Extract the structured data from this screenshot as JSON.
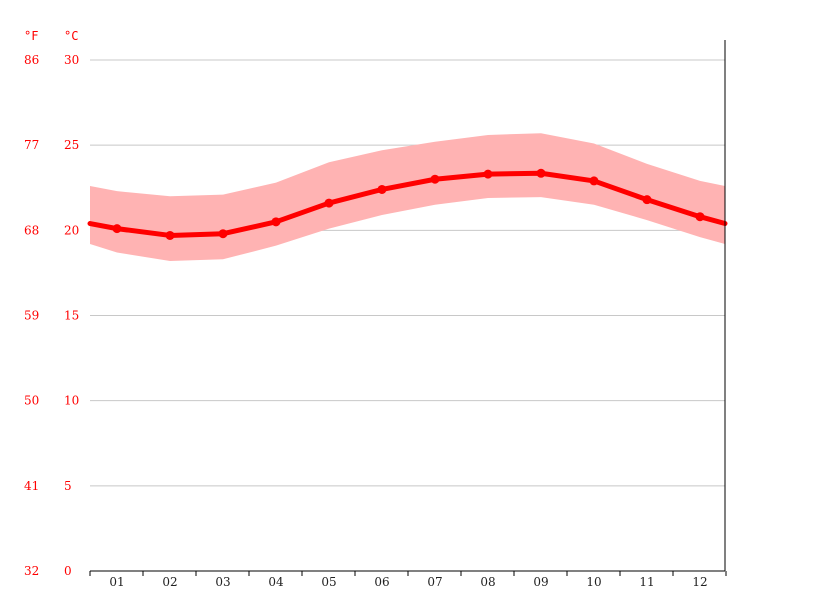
{
  "chart_data": {
    "type": "line",
    "title": "",
    "xlabel": "",
    "ylabel": "",
    "unit_left": "°F",
    "unit_right": "°C",
    "categories": [
      "01",
      "02",
      "03",
      "04",
      "05",
      "06",
      "07",
      "08",
      "09",
      "10",
      "11",
      "12"
    ],
    "ylim": [
      0,
      30
    ],
    "yticks_c": [
      "30",
      "25",
      "20",
      "15",
      "10",
      "5",
      "0"
    ],
    "yticks_f": [
      "86",
      "77",
      "68",
      "59",
      "50",
      "41",
      "32"
    ],
    "ytick_values": [
      30,
      25,
      20,
      15,
      10,
      5,
      0
    ],
    "grid": true,
    "series": [
      {
        "values": [
          20.1,
          19.7,
          19.8,
          20.5,
          21.6,
          22.4,
          23.0,
          23.3,
          23.35,
          22.9,
          21.8,
          20.8
        ]
      }
    ],
    "band": {
      "upper": [
        22.3,
        22.0,
        22.1,
        22.8,
        24.0,
        24.7,
        25.2,
        25.6,
        25.7,
        25.1,
        23.9,
        22.9
      ],
      "lower": [
        18.7,
        18.2,
        18.3,
        19.1,
        20.1,
        20.9,
        21.5,
        21.9,
        21.95,
        21.5,
        20.6,
        19.6
      ]
    },
    "edge_values": {
      "start": 20.4,
      "end": 20.4,
      "upper_start": 22.6,
      "upper_end": 22.6,
      "lower_start": 19.2,
      "lower_end": 19.2
    },
    "colors": {
      "line": "#ff0000",
      "band": "#ffb3b3",
      "axis_text": "#ff0000",
      "x_text": "#222222",
      "grid": "#c8c8c8"
    }
  }
}
